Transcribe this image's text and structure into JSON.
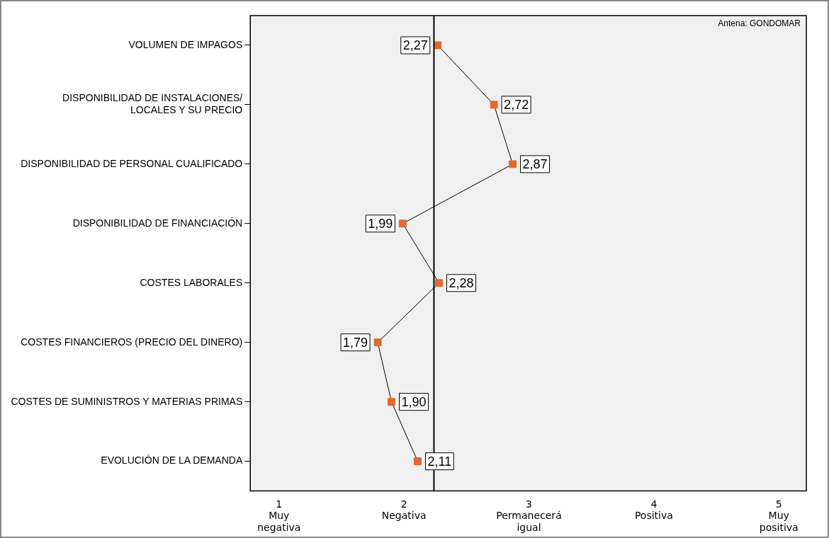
{
  "chart_data": {
    "type": "line",
    "orientation": "horizontal",
    "categories": [
      "VOLUMEN DE IMPAGOS",
      "DISPONIBILIDAD DE INSTALACIONES/\nLOCALES Y SU PRECIO",
      "DISPONIBILIDAD DE PERSONAL CUALIFICADO",
      "DISPONIBILIDAD DE FINANCIACIÓN",
      "COSTES LABORALES",
      "COSTES FINANCIEROS (PRECIO DEL DINERO)",
      "COSTES DE SUMINISTROS Y MATERIAS PRIMAS",
      "EVOLUCIÓN DE LA DEMANDA"
    ],
    "series": [
      {
        "color": "#e2692f",
        "values": [
          2.27,
          2.72,
          2.87,
          1.99,
          2.28,
          1.79,
          1.9,
          2.11
        ],
        "value_labels": [
          "2,27",
          "2,72",
          "2,87",
          "1,99",
          "2,28",
          "1,79",
          "1,90",
          "2,11"
        ]
      }
    ],
    "xlim": [
      0.77,
      5.22
    ],
    "xticks": [
      {
        "value": 1,
        "label": "1\nMuy\nnegativa"
      },
      {
        "value": 2,
        "label": "2\nNegativa"
      },
      {
        "value": 3,
        "label": "3\nPermanecerá\nigual"
      },
      {
        "value": 4,
        "label": "4\nPositiva"
      },
      {
        "value": 5,
        "label": "5\nMuy\npositiva"
      }
    ],
    "ref_lines": [
      {
        "axis": "x",
        "value": 2.24,
        "color": "#000000"
      }
    ],
    "annotations": [
      "Antena: GONDOMAR"
    ],
    "marker": "square",
    "line_style": "solid",
    "grid": false,
    "legend": false
  }
}
